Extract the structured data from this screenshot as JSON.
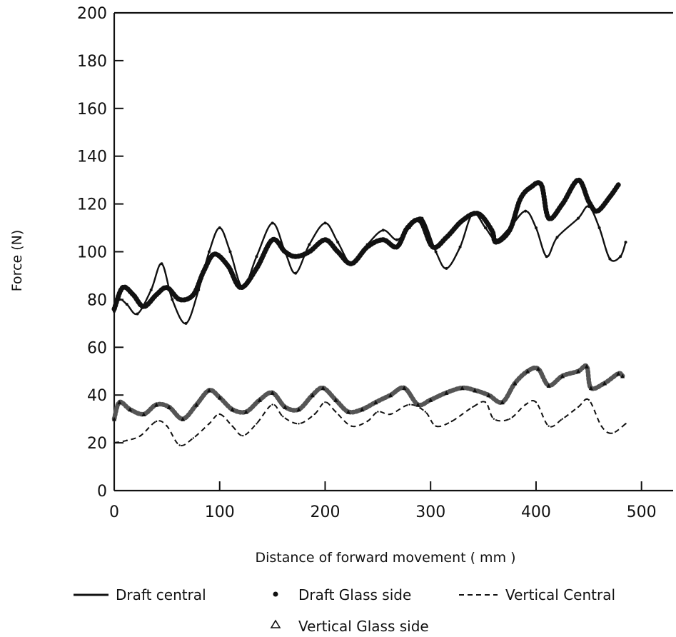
{
  "chart_data": {
    "type": "line",
    "title": "",
    "xlabel": "Distance of forward movement ( mm )",
    "ylabel": "Force (N)",
    "xlim": [
      0,
      530
    ],
    "ylim": [
      0,
      200
    ],
    "xticks": [
      0,
      100,
      200,
      300,
      400,
      500
    ],
    "yticks": [
      0,
      20,
      40,
      60,
      80,
      100,
      120,
      140,
      160,
      180,
      200
    ],
    "grid": false,
    "legend_position": "bottom",
    "series": [
      {
        "name": "Draft central",
        "style": "solid",
        "points": [
          [
            0,
            75
          ],
          [
            5,
            80
          ],
          [
            12,
            78
          ],
          [
            22,
            74
          ],
          [
            35,
            84
          ],
          [
            45,
            95
          ],
          [
            55,
            80
          ],
          [
            68,
            70
          ],
          [
            80,
            84
          ],
          [
            90,
            100
          ],
          [
            100,
            110
          ],
          [
            110,
            100
          ],
          [
            122,
            85
          ],
          [
            135,
            98
          ],
          [
            150,
            112
          ],
          [
            162,
            100
          ],
          [
            172,
            91
          ],
          [
            185,
            103
          ],
          [
            200,
            112
          ],
          [
            212,
            104
          ],
          [
            225,
            95
          ],
          [
            240,
            103
          ],
          [
            255,
            109
          ],
          [
            268,
            105
          ],
          [
            280,
            110
          ],
          [
            292,
            114
          ],
          [
            305,
            100
          ],
          [
            315,
            93
          ],
          [
            328,
            102
          ],
          [
            340,
            116
          ],
          [
            352,
            110
          ],
          [
            362,
            105
          ],
          [
            375,
            110
          ],
          [
            390,
            117
          ],
          [
            400,
            110
          ],
          [
            410,
            98
          ],
          [
            420,
            106
          ],
          [
            440,
            114
          ],
          [
            450,
            119
          ],
          [
            460,
            110
          ],
          [
            470,
            97
          ],
          [
            480,
            98
          ],
          [
            485,
            104
          ]
        ]
      },
      {
        "name": "Draft Glass side",
        "style": "thick-dotted",
        "points": [
          [
            0,
            76
          ],
          [
            8,
            85
          ],
          [
            18,
            82
          ],
          [
            28,
            77
          ],
          [
            40,
            82
          ],
          [
            50,
            85
          ],
          [
            62,
            80
          ],
          [
            75,
            82
          ],
          [
            85,
            92
          ],
          [
            95,
            99
          ],
          [
            108,
            94
          ],
          [
            120,
            85
          ],
          [
            135,
            93
          ],
          [
            150,
            105
          ],
          [
            162,
            100
          ],
          [
            172,
            98
          ],
          [
            185,
            100
          ],
          [
            200,
            105
          ],
          [
            212,
            100
          ],
          [
            225,
            95
          ],
          [
            240,
            102
          ],
          [
            255,
            105
          ],
          [
            268,
            102
          ],
          [
            278,
            110
          ],
          [
            290,
            113
          ],
          [
            302,
            102
          ],
          [
            315,
            106
          ],
          [
            330,
            113
          ],
          [
            345,
            116
          ],
          [
            358,
            109
          ],
          [
            362,
            104
          ],
          [
            375,
            109
          ],
          [
            385,
            122
          ],
          [
            395,
            127
          ],
          [
            405,
            128
          ],
          [
            412,
            114
          ],
          [
            425,
            120
          ],
          [
            440,
            130
          ],
          [
            450,
            121
          ],
          [
            458,
            117
          ],
          [
            470,
            123
          ],
          [
            478,
            128
          ]
        ]
      },
      {
        "name": "Vertical Central",
        "style": "dashed",
        "points": [
          [
            0,
            20
          ],
          [
            12,
            21
          ],
          [
            25,
            23
          ],
          [
            40,
            29
          ],
          [
            50,
            27
          ],
          [
            62,
            19
          ],
          [
            75,
            22
          ],
          [
            90,
            28
          ],
          [
            100,
            32
          ],
          [
            112,
            27
          ],
          [
            122,
            23
          ],
          [
            135,
            28
          ],
          [
            150,
            36
          ],
          [
            160,
            31
          ],
          [
            175,
            28
          ],
          [
            190,
            32
          ],
          [
            200,
            37
          ],
          [
            210,
            33
          ],
          [
            225,
            27
          ],
          [
            240,
            29
          ],
          [
            250,
            33
          ],
          [
            262,
            32
          ],
          [
            280,
            36
          ],
          [
            295,
            33
          ],
          [
            305,
            27
          ],
          [
            320,
            29
          ],
          [
            340,
            35
          ],
          [
            352,
            37
          ],
          [
            360,
            30
          ],
          [
            375,
            30
          ],
          [
            390,
            36
          ],
          [
            400,
            37
          ],
          [
            412,
            27
          ],
          [
            425,
            30
          ],
          [
            440,
            35
          ],
          [
            450,
            38
          ],
          [
            462,
            27
          ],
          [
            472,
            24
          ],
          [
            485,
            28
          ]
        ]
      },
      {
        "name": "Vertical Glass side",
        "style": "triangle-markers",
        "points": [
          [
            0,
            30
          ],
          [
            5,
            37
          ],
          [
            15,
            34
          ],
          [
            28,
            32
          ],
          [
            40,
            36
          ],
          [
            52,
            35
          ],
          [
            65,
            30
          ],
          [
            78,
            36
          ],
          [
            90,
            42
          ],
          [
            100,
            39
          ],
          [
            112,
            34
          ],
          [
            125,
            33
          ],
          [
            138,
            38
          ],
          [
            150,
            41
          ],
          [
            162,
            35
          ],
          [
            175,
            34
          ],
          [
            188,
            40
          ],
          [
            198,
            43
          ],
          [
            210,
            38
          ],
          [
            222,
            33
          ],
          [
            235,
            34
          ],
          [
            248,
            37
          ],
          [
            262,
            40
          ],
          [
            275,
            43
          ],
          [
            288,
            36
          ],
          [
            300,
            38
          ],
          [
            315,
            41
          ],
          [
            330,
            43
          ],
          [
            342,
            42
          ],
          [
            355,
            40
          ],
          [
            368,
            37
          ],
          [
            380,
            45
          ],
          [
            392,
            50
          ],
          [
            402,
            51
          ],
          [
            412,
            44
          ],
          [
            425,
            48
          ],
          [
            440,
            50
          ],
          [
            448,
            52
          ],
          [
            452,
            43
          ],
          [
            465,
            45
          ],
          [
            478,
            49
          ],
          [
            482,
            48
          ]
        ]
      }
    ]
  },
  "legend": {
    "items": [
      {
        "label": "Draft central",
        "marker": "line-solid"
      },
      {
        "label": "Draft Glass side",
        "marker": "dot"
      },
      {
        "label": "Vertical Central",
        "marker": "line-dashed"
      },
      {
        "label": "Vertical Glass side",
        "marker": "triangle"
      }
    ]
  },
  "colors": {
    "ink": "#111111",
    "background": "#ffffff"
  }
}
